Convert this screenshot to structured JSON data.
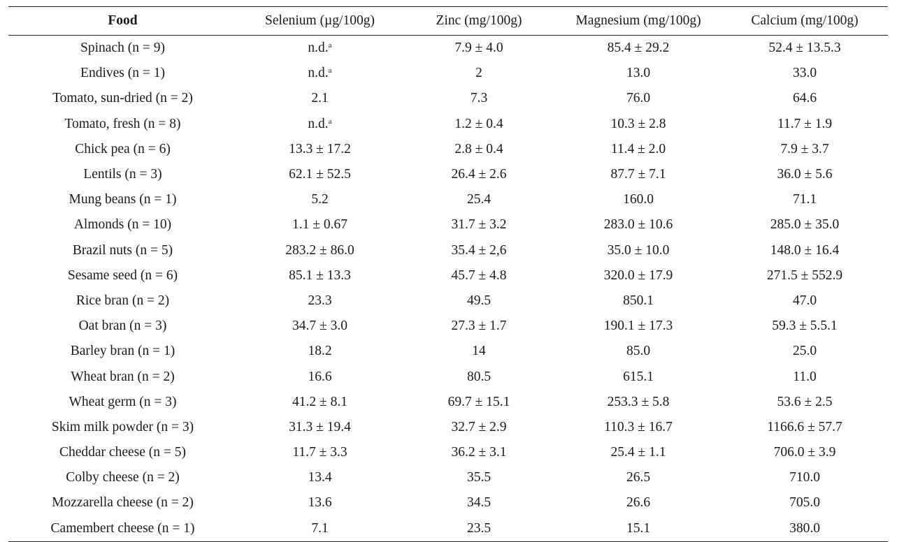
{
  "table": {
    "headers": [
      "Food",
      "Selenium (µg/100g)",
      "Zinc (mg/100g)",
      "Magnesium (mg/100g)",
      "Calcium (mg/100g)"
    ],
    "footnote_marker": "a",
    "rows": [
      {
        "food": "Spinach (n = 9)",
        "selenium": "n.d.",
        "selenium_sup": "a",
        "zinc": "7.9 ± 4.0",
        "magnesium": "85.4 ± 29.2",
        "calcium": "52.4 ± 13.5.3"
      },
      {
        "food": "Endives (n = 1)",
        "selenium": "n.d.",
        "selenium_sup": "a",
        "zinc": "2",
        "magnesium": "13.0",
        "calcium": "33.0"
      },
      {
        "food": "Tomato, sun-dried (n = 2)",
        "selenium": "2.1",
        "selenium_sup": "",
        "zinc": "7.3",
        "magnesium": "76.0",
        "calcium": "64.6"
      },
      {
        "food": "Tomato, fresh (n = 8)",
        "selenium": "n.d.",
        "selenium_sup": "a",
        "zinc": "1.2 ± 0.4",
        "magnesium": "10.3 ± 2.8",
        "calcium": "11.7 ± 1.9"
      },
      {
        "food": "Chick pea (n = 6)",
        "selenium": "13.3 ± 17.2",
        "selenium_sup": "",
        "zinc": "2.8 ± 0.4",
        "magnesium": "11.4 ± 2.0",
        "calcium": "7.9 ± 3.7"
      },
      {
        "food": "Lentils (n = 3)",
        "selenium": "62.1 ± 52.5",
        "selenium_sup": "",
        "zinc": "26.4 ± 2.6",
        "magnesium": "87.7 ± 7.1",
        "calcium": "36.0 ± 5.6"
      },
      {
        "food": "Mung beans (n = 1)",
        "selenium": "5.2",
        "selenium_sup": "",
        "zinc": "25.4",
        "magnesium": "160.0",
        "calcium": "71.1"
      },
      {
        "food": "Almonds (n = 10)",
        "selenium": "1.1 ± 0.67",
        "selenium_sup": "",
        "zinc": "31.7 ± 3.2",
        "magnesium": "283.0 ± 10.6",
        "calcium": "285.0 ± 35.0"
      },
      {
        "food": "Brazil nuts (n = 5)",
        "selenium": "283.2 ± 86.0",
        "selenium_sup": "",
        "zinc": "35.4 ± 2,6",
        "magnesium": "35.0 ± 10.0",
        "calcium": "148.0 ± 16.4"
      },
      {
        "food": "Sesame seed (n = 6)",
        "selenium": "85.1 ± 13.3",
        "selenium_sup": "",
        "zinc": "45.7 ± 4.8",
        "magnesium": "320.0 ± 17.9",
        "calcium": "271.5 ± 552.9"
      },
      {
        "food": "Rice bran (n = 2)",
        "selenium": "23.3",
        "selenium_sup": "",
        "zinc": "49.5",
        "magnesium": "850.1",
        "calcium": "47.0"
      },
      {
        "food": "Oat bran (n = 3)",
        "selenium": "34.7 ± 3.0",
        "selenium_sup": "",
        "zinc": "27.3 ± 1.7",
        "magnesium": "190.1 ± 17.3",
        "calcium": "59.3 ± 5.5.1"
      },
      {
        "food": "Barley bran (n = 1)",
        "selenium": "18.2",
        "selenium_sup": "",
        "zinc": "14",
        "magnesium": "85.0",
        "calcium": "25.0"
      },
      {
        "food": "Wheat bran (n = 2)",
        "selenium": "16.6",
        "selenium_sup": "",
        "zinc": "80.5",
        "magnesium": "615.1",
        "calcium": "11.0"
      },
      {
        "food": "Wheat germ (n = 3)",
        "selenium": "41.2 ± 8.1",
        "selenium_sup": "",
        "zinc": "69.7 ± 15.1",
        "magnesium": "253.3 ± 5.8",
        "calcium": "53.6 ± 2.5"
      },
      {
        "food": "Skim milk powder (n = 3)",
        "selenium": "31.3 ± 19.4",
        "selenium_sup": "",
        "zinc": "32.7 ± 2.9",
        "magnesium": "110.3 ± 16.7",
        "calcium": "1166.6 ± 57.7"
      },
      {
        "food": "Cheddar cheese (n = 5)",
        "selenium": "11.7 ± 3.3",
        "selenium_sup": "",
        "zinc": "36.2 ± 3.1",
        "magnesium": "25.4 ± 1.1",
        "calcium": "706.0 ± 3.9"
      },
      {
        "food": "Colby cheese (n = 2)",
        "selenium": "13.4",
        "selenium_sup": "",
        "zinc": "35.5",
        "magnesium": "26.5",
        "calcium": "710.0"
      },
      {
        "food": "Mozzarella cheese (n = 2)",
        "selenium": "13.6",
        "selenium_sup": "",
        "zinc": "34.5",
        "magnesium": "26.6",
        "calcium": "705.0"
      },
      {
        "food": "Camembert cheese (n = 1)",
        "selenium": "7.1",
        "selenium_sup": "",
        "zinc": "23.5",
        "magnesium": "15.1",
        "calcium": "380.0"
      }
    ]
  }
}
